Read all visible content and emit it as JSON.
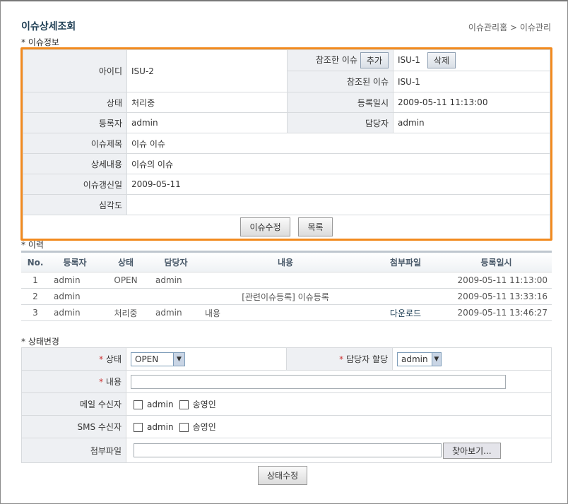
{
  "header": {
    "title": "이슈상세조회",
    "breadcrumb_home": "이슈관리홈",
    "breadcrumb_sep": ">",
    "breadcrumb_current": "이슈관리"
  },
  "info": {
    "section": "* 이슈정보",
    "id_label": "아이디",
    "id_value": "ISU-2",
    "ref_label": "참조한 이슈",
    "add_label": "추가",
    "ref_value": "ISU-1",
    "delete_label": "삭제",
    "refby_label": "참조된 이슈",
    "refby_value": "ISU-1",
    "status_label": "상태",
    "status_value": "처리중",
    "regdate_label": "등록일시",
    "regdate_value": "2009-05-11 11:13:00",
    "reg_label": "등록자",
    "reg_value": "admin",
    "owner_label": "담당자",
    "owner_value": "admin",
    "subject_label": "이슈제목",
    "subject_value": "이슈 이슈",
    "detail_label": "상세내용",
    "detail_value": "이슈의 이슈",
    "update_label": "이슈갱신일",
    "update_value": "2009-05-11",
    "severity_label": "심각도",
    "severity_value": "",
    "edit_button": "이슈수정",
    "list_button": "목록"
  },
  "history": {
    "section": "* 이력",
    "columns": [
      "No.",
      "등록자",
      "상태",
      "담당자",
      "내용",
      "첨부파일",
      "등록일시"
    ],
    "rows": [
      [
        "1",
        "admin",
        "OPEN",
        "admin",
        "",
        "",
        "2009-05-11 11:13:00"
      ],
      [
        "2",
        "admin",
        "",
        "",
        "[관련이슈등록] 이슈등록",
        "",
        "2009-05-11 13:33:16"
      ],
      [
        "3",
        "admin",
        "처리중",
        "admin",
        "내용",
        "다운로드",
        "2009-05-11 13:46:27"
      ]
    ]
  },
  "status_change": {
    "section": "* 상태변경",
    "required_mark": "*",
    "status_label": "상태",
    "status_selected": "OPEN",
    "assign_label": "담당자 할당",
    "assign_selected": "admin",
    "content_label": "내용",
    "content_value": "",
    "mail_label": "메일 수신자",
    "sms_label": "SMS 수신자",
    "recipients": [
      "admin",
      "송영인"
    ],
    "file_label": "첨부파일",
    "file_value": "",
    "browse_button": "찾아보기...",
    "submit_button": "상태수정"
  },
  "colors": {
    "accent_border": "#f28a1e",
    "title": "#1f3f55",
    "label_bg": "#eef0f3"
  }
}
